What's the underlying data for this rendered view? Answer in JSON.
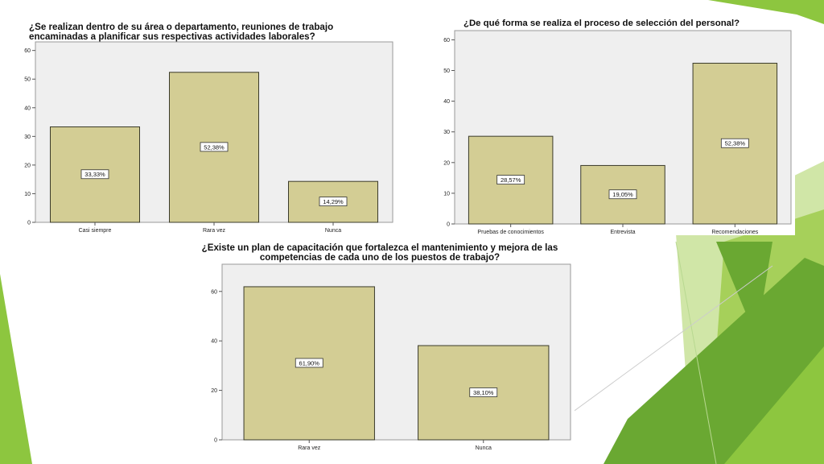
{
  "colors": {
    "bar_fill": "#d3cd94",
    "bar_stroke": "#3a3a2a",
    "plot_bg": "#efefef",
    "deco_greens": [
      "#8dc63f",
      "#6aa832",
      "#a6d05a",
      "#c4e091",
      "#4e8e2a"
    ]
  },
  "chart_data": [
    {
      "type": "bar",
      "title": "¿Se realizan dentro de su área o departamento, reuniones de trabajo\nencaminadas a planificar sus respectivas actividades laborales?",
      "categories": [
        "Casi siempre",
        "Rara vez",
        "Nunca"
      ],
      "values": [
        33.33,
        52.38,
        14.29
      ],
      "data_labels": [
        "33,33%",
        "52,38%",
        "14,29%"
      ],
      "ylim": [
        0,
        63
      ],
      "yticks": [
        0,
        10,
        20,
        30,
        40,
        50,
        60
      ],
      "xlabel": "",
      "ylabel": "",
      "grid": false
    },
    {
      "type": "bar",
      "title": "¿De qué forma se realiza el proceso de selección del personal?",
      "categories": [
        "Pruebas de conocimientos",
        "Entrevista",
        "Recomendaciones"
      ],
      "values": [
        28.57,
        19.05,
        52.38
      ],
      "data_labels": [
        "28,57%",
        "19,05%",
        "52,38%"
      ],
      "ylim": [
        0,
        63
      ],
      "yticks": [
        0,
        10,
        20,
        30,
        40,
        50,
        60
      ],
      "xlabel": "",
      "ylabel": "",
      "grid": false
    },
    {
      "type": "bar",
      "title": "¿Existe un plan de capacitación que fortalezca el mantenimiento y mejora de las\ncompetencias de cada uno de los puestos de trabajo?",
      "categories": [
        "Rara vez",
        "Nunca"
      ],
      "values": [
        61.9,
        38.1
      ],
      "data_labels": [
        "61,90%",
        "38,10%"
      ],
      "ylim": [
        0,
        71
      ],
      "yticks": [
        0,
        20,
        40,
        60
      ],
      "xlabel": "",
      "ylabel": "",
      "grid": false
    }
  ]
}
